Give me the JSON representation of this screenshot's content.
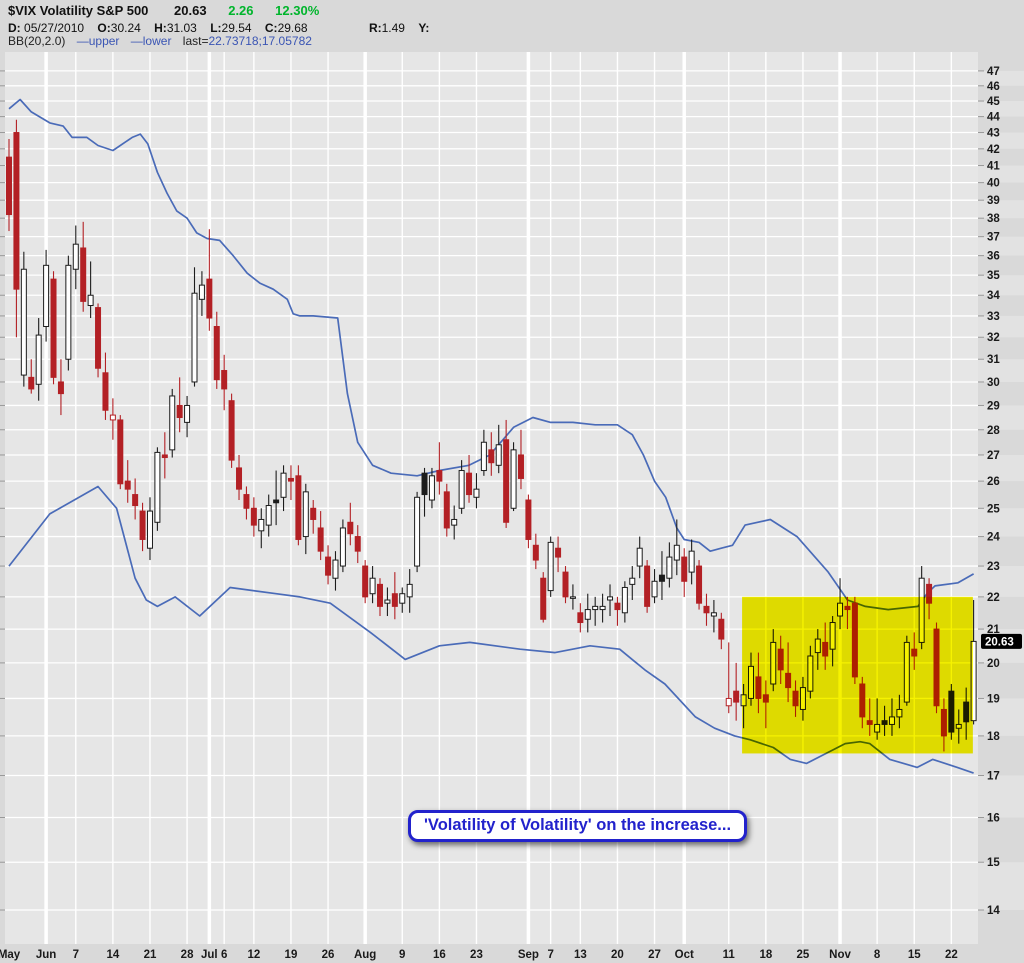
{
  "header": {
    "symbol": "$VIX Volatility S&P 500",
    "last_price": "20.63",
    "change": "2.26",
    "change_pct": "12.30%",
    "d_label": "D:",
    "date": "05/27/2010",
    "o_label": "O:",
    "open": "30.24",
    "h_label": "H:",
    "high": "31.03",
    "l_label": "L:",
    "low": "29.54",
    "c_label": "C:",
    "close": "29.68",
    "r_label": "R:",
    "range": "1.49",
    "y_label": "Y:",
    "bb_label": "BB(20,2.0)",
    "bb_upper": "—upper",
    "bb_lower": "—lower",
    "bb_last_label": "last=",
    "bb_last_value": "22.73718;17.05782"
  },
  "annotation": {
    "text": "'Volatility of Volatility' on the increase..."
  },
  "price_tag": {
    "value": "20.63",
    "price": 20.63
  },
  "colors": {
    "page_bg": "#d9d9d9",
    "plot_bg": "#e6e6e6",
    "grid": "#ffffff",
    "up_candle": "#1c1c1c",
    "down_candle": "#b32025",
    "hollow_fill": "#ffffff",
    "band_line": "#4a6bb8",
    "highlight_yellow": "#f6f200",
    "green_text": "#00b52c",
    "blue_text": "#3a55b4",
    "tag_bg": "#000000",
    "tag_text": "#ffffff",
    "axis_text": "#1a1a1a",
    "tick": "#999999"
  },
  "chart_data": {
    "type": "candlestick",
    "title": "$VIX Volatility S&P 500",
    "scale": "log",
    "grid": true,
    "overlay": "Bollinger Bands (20,2.0)",
    "y_axis": {
      "top_price": 48.3,
      "bottom_price": 13.33,
      "labels": [
        47,
        46,
        45,
        44,
        43,
        42,
        41,
        40,
        39,
        38,
        37,
        36,
        35,
        34,
        33,
        32,
        31,
        30,
        29,
        28,
        27,
        26,
        25,
        24,
        23,
        22,
        21,
        20,
        19,
        18,
        17,
        16,
        15,
        14
      ]
    },
    "x_ticks": [
      {
        "label": "May",
        "i": 0,
        "month": true
      },
      {
        "label": "Jun",
        "i": 5,
        "month": true
      },
      {
        "label": "7",
        "i": 9
      },
      {
        "label": "14",
        "i": 14
      },
      {
        "label": "21",
        "i": 19
      },
      {
        "label": "28",
        "i": 24
      },
      {
        "label": "Jul",
        "i": 27,
        "month": true
      },
      {
        "label": "6",
        "i": 29
      },
      {
        "label": "12",
        "i": 33
      },
      {
        "label": "19",
        "i": 38
      },
      {
        "label": "26",
        "i": 43
      },
      {
        "label": "Aug",
        "i": 48,
        "month": true
      },
      {
        "label": "9",
        "i": 53
      },
      {
        "label": "16",
        "i": 58
      },
      {
        "label": "23",
        "i": 63
      },
      {
        "label": "Sep",
        "i": 70,
        "month": true
      },
      {
        "label": "7",
        "i": 73
      },
      {
        "label": "13",
        "i": 77
      },
      {
        "label": "20",
        "i": 82
      },
      {
        "label": "27",
        "i": 87
      },
      {
        "label": "Oct",
        "i": 91,
        "month": true
      },
      {
        "label": "11",
        "i": 97
      },
      {
        "label": "18",
        "i": 102
      },
      {
        "label": "25",
        "i": 107
      },
      {
        "label": "Nov",
        "i": 112,
        "month": true
      },
      {
        "label": "8",
        "i": 117
      },
      {
        "label": "15",
        "i": 122
      },
      {
        "label": "22",
        "i": 127
      }
    ],
    "ohlc": [
      [
        41.5,
        42.6,
        37.3,
        38.2
      ],
      [
        43.0,
        43.8,
        32.0,
        34.3
      ],
      [
        30.3,
        36.2,
        29.8,
        35.3
      ],
      [
        30.2,
        31.0,
        29.5,
        29.7
      ],
      [
        29.9,
        32.9,
        29.2,
        32.1
      ],
      [
        32.5,
        36.3,
        31.8,
        35.5
      ],
      [
        34.8,
        35.2,
        29.9,
        30.2
      ],
      [
        30.0,
        31.0,
        28.6,
        29.5
      ],
      [
        31.0,
        36.0,
        30.5,
        35.5
      ],
      [
        35.3,
        37.6,
        34.3,
        36.6
      ],
      [
        36.4,
        37.8,
        33.2,
        33.7
      ],
      [
        33.5,
        35.7,
        32.9,
        34.0
      ],
      [
        33.4,
        33.6,
        30.2,
        30.6
      ],
      [
        30.4,
        31.3,
        28.4,
        28.8
      ],
      [
        28.4,
        29.3,
        27.6,
        28.6
      ],
      [
        28.4,
        28.6,
        25.7,
        25.9
      ],
      [
        26.0,
        26.8,
        25.2,
        25.7
      ],
      [
        25.5,
        26.1,
        24.6,
        25.1
      ],
      [
        24.9,
        25.2,
        23.5,
        23.9
      ],
      [
        23.6,
        25.4,
        23.2,
        24.9
      ],
      [
        24.5,
        27.3,
        24.2,
        27.1
      ],
      [
        27.0,
        27.9,
        26.1,
        26.9
      ],
      [
        27.2,
        29.7,
        26.9,
        29.4
      ],
      [
        29.0,
        30.2,
        27.9,
        28.5
      ],
      [
        28.3,
        29.4,
        27.7,
        29.0
      ],
      [
        30.0,
        35.4,
        29.8,
        34.1
      ],
      [
        33.8,
        35.2,
        33.0,
        34.5
      ],
      [
        34.8,
        37.4,
        32.3,
        32.9
      ],
      [
        32.5,
        33.2,
        29.7,
        30.1
      ],
      [
        30.5,
        31.2,
        28.8,
        29.7
      ],
      [
        29.2,
        29.5,
        26.5,
        26.8
      ],
      [
        26.5,
        27.0,
        25.3,
        25.7
      ],
      [
        25.5,
        25.8,
        24.6,
        25.0
      ],
      [
        25.0,
        25.4,
        24.0,
        24.4
      ],
      [
        24.2,
        25.0,
        23.6,
        24.6
      ],
      [
        24.4,
        25.5,
        24.0,
        25.1
      ],
      [
        25.3,
        26.4,
        24.4,
        25.2
      ],
      [
        25.4,
        26.6,
        24.9,
        26.3
      ],
      [
        26.1,
        26.6,
        25.3,
        26.0
      ],
      [
        26.2,
        26.6,
        23.7,
        23.9
      ],
      [
        24.0,
        25.9,
        23.4,
        25.6
      ],
      [
        25.0,
        25.3,
        24.1,
        24.6
      ],
      [
        24.3,
        24.9,
        23.2,
        23.5
      ],
      [
        23.3,
        23.7,
        22.4,
        22.7
      ],
      [
        22.6,
        23.5,
        22.2,
        23.2
      ],
      [
        23.0,
        24.6,
        22.8,
        24.3
      ],
      [
        24.5,
        25.2,
        23.7,
        24.1
      ],
      [
        24.0,
        24.4,
        23.1,
        23.5
      ],
      [
        23.0,
        23.2,
        21.8,
        22.0
      ],
      [
        22.1,
        23.0,
        21.8,
        22.6
      ],
      [
        22.4,
        22.6,
        21.4,
        21.7
      ],
      [
        21.8,
        22.3,
        21.4,
        21.9
      ],
      [
        22.1,
        22.8,
        21.3,
        21.7
      ],
      [
        21.8,
        22.3,
        21.5,
        22.1
      ],
      [
        22.0,
        22.9,
        21.5,
        22.4
      ],
      [
        23.0,
        25.6,
        22.8,
        25.4
      ],
      [
        26.3,
        26.5,
        24.7,
        25.5
      ],
      [
        25.3,
        26.5,
        25.0,
        26.2
      ],
      [
        26.4,
        27.5,
        25.5,
        26.0
      ],
      [
        25.6,
        25.9,
        24.0,
        24.3
      ],
      [
        24.4,
        25.1,
        23.9,
        24.6
      ],
      [
        25.0,
        26.8,
        24.8,
        26.4
      ],
      [
        26.3,
        27.0,
        25.2,
        25.5
      ],
      [
        25.4,
        26.3,
        25.0,
        25.7
      ],
      [
        26.4,
        28.0,
        26.2,
        27.5
      ],
      [
        27.2,
        27.9,
        26.2,
        26.7
      ],
      [
        26.6,
        28.2,
        26.3,
        27.4
      ],
      [
        27.6,
        28.4,
        24.3,
        24.5
      ],
      [
        25.0,
        27.5,
        24.9,
        27.2
      ],
      [
        27.0,
        28.0,
        25.7,
        26.1
      ],
      [
        25.3,
        25.5,
        23.6,
        23.9
      ],
      [
        23.7,
        24.1,
        22.9,
        23.2
      ],
      [
        22.6,
        22.8,
        21.2,
        21.3
      ],
      [
        22.2,
        24.0,
        22.0,
        23.8
      ],
      [
        23.6,
        24.0,
        22.8,
        23.3
      ],
      [
        22.8,
        23.0,
        21.8,
        22.0
      ],
      [
        22.0,
        22.4,
        21.6,
        22.0
      ],
      [
        21.5,
        21.8,
        20.9,
        21.2
      ],
      [
        21.3,
        22.1,
        20.9,
        21.6
      ],
      [
        21.6,
        22.0,
        21.1,
        21.7
      ],
      [
        21.6,
        22.1,
        21.2,
        21.7
      ],
      [
        21.9,
        22.4,
        21.4,
        22.0
      ],
      [
        21.8,
        22.0,
        21.1,
        21.6
      ],
      [
        21.5,
        22.5,
        21.2,
        22.3
      ],
      [
        22.4,
        23.0,
        21.9,
        22.6
      ],
      [
        23.0,
        24.0,
        22.6,
        23.6
      ],
      [
        23.0,
        23.2,
        21.5,
        21.7
      ],
      [
        22.0,
        22.9,
        21.8,
        22.5
      ],
      [
        22.7,
        23.5,
        21.9,
        22.5
      ],
      [
        22.6,
        23.8,
        22.3,
        23.3
      ],
      [
        23.2,
        24.6,
        22.7,
        23.7
      ],
      [
        23.3,
        23.6,
        22.0,
        22.5
      ],
      [
        22.8,
        23.9,
        22.4,
        23.5
      ],
      [
        23.0,
        23.2,
        21.6,
        21.8
      ],
      [
        21.7,
        22.1,
        21.1,
        21.5
      ],
      [
        21.4,
        21.9,
        20.9,
        21.5
      ],
      [
        21.3,
        21.5,
        20.4,
        20.7
      ],
      [
        18.8,
        20.6,
        18.6,
        19.0
      ],
      [
        19.2,
        20.0,
        18.4,
        18.9
      ],
      [
        18.8,
        19.4,
        18.2,
        19.1
      ],
      [
        19.0,
        20.3,
        18.8,
        19.9
      ],
      [
        19.6,
        20.3,
        18.6,
        19.0
      ],
      [
        19.1,
        19.5,
        18.2,
        18.9
      ],
      [
        19.4,
        21.0,
        19.2,
        20.6
      ],
      [
        20.4,
        20.8,
        19.4,
        19.8
      ],
      [
        19.7,
        20.6,
        18.9,
        19.3
      ],
      [
        19.2,
        19.5,
        18.5,
        18.8
      ],
      [
        18.7,
        19.6,
        18.4,
        19.3
      ],
      [
        19.2,
        20.5,
        19.0,
        20.2
      ],
      [
        20.3,
        21.0,
        19.8,
        20.7
      ],
      [
        20.6,
        21.2,
        19.8,
        20.2
      ],
      [
        20.4,
        21.4,
        19.9,
        21.2
      ],
      [
        21.4,
        22.6,
        21.0,
        21.8
      ],
      [
        21.7,
        22.0,
        21.0,
        21.6
      ],
      [
        21.8,
        22.0,
        19.4,
        19.6
      ],
      [
        19.4,
        19.6,
        18.2,
        18.5
      ],
      [
        18.4,
        19.0,
        18.0,
        18.3
      ],
      [
        18.1,
        19.0,
        17.9,
        18.3
      ],
      [
        18.4,
        18.8,
        18.0,
        18.3
      ],
      [
        18.3,
        19.0,
        18.0,
        18.5
      ],
      [
        18.5,
        19.1,
        18.2,
        18.7
      ],
      [
        18.9,
        20.8,
        18.8,
        20.6
      ],
      [
        20.4,
        20.9,
        19.8,
        20.2
      ],
      [
        20.6,
        23.0,
        20.4,
        22.6
      ],
      [
        22.4,
        22.6,
        21.3,
        21.8
      ],
      [
        21.0,
        21.2,
        18.6,
        18.8
      ],
      [
        18.7,
        19.0,
        17.6,
        18.0
      ],
      [
        19.2,
        19.4,
        17.9,
        18.1
      ],
      [
        18.2,
        18.7,
        17.8,
        18.3
      ],
      [
        18.9,
        19.3,
        17.9,
        18.37
      ],
      [
        18.4,
        21.9,
        18.3,
        20.63
      ]
    ],
    "bollinger": {
      "period": 20,
      "stdev": 2.0,
      "last_upper": 22.73718,
      "last_lower": 17.05782,
      "upper_keypoints": [
        [
          0,
          44.5
        ],
        [
          1.5,
          45.1
        ],
        [
          3,
          44.3
        ],
        [
          5.5,
          43.6
        ],
        [
          7.3,
          43.4
        ],
        [
          8.5,
          42.7
        ],
        [
          10.5,
          42.7
        ],
        [
          12,
          42.2
        ],
        [
          14,
          41.9
        ],
        [
          16.6,
          42.7
        ],
        [
          17.7,
          42.9
        ],
        [
          18.7,
          42.3
        ],
        [
          20,
          40.6
        ],
        [
          21.3,
          39.4
        ],
        [
          22.6,
          38.4
        ],
        [
          24,
          38.0
        ],
        [
          25.3,
          37.2
        ],
        [
          26.7,
          36.9
        ],
        [
          28.4,
          36.8
        ],
        [
          30.2,
          36.0
        ],
        [
          32.1,
          35.1
        ],
        [
          33.8,
          34.6
        ],
        [
          35.6,
          34.3
        ],
        [
          37.5,
          33.8
        ],
        [
          38.3,
          33.1
        ],
        [
          39.2,
          33.0
        ],
        [
          41,
          33.0
        ],
        [
          44.3,
          32.9
        ],
        [
          45.6,
          29.5
        ],
        [
          47,
          27.5
        ],
        [
          49,
          26.6
        ],
        [
          51.5,
          26.3
        ],
        [
          55,
          26.2
        ],
        [
          58,
          26.4
        ],
        [
          62,
          26.6
        ],
        [
          64.8,
          27.0
        ],
        [
          68,
          28.1
        ],
        [
          70.6,
          28.5
        ],
        [
          73,
          28.3
        ],
        [
          76,
          28.3
        ],
        [
          79,
          28.2
        ],
        [
          82,
          28.2
        ],
        [
          84,
          27.8
        ],
        [
          85.5,
          27.0
        ],
        [
          87,
          26.0
        ],
        [
          88.5,
          25.4
        ],
        [
          90,
          24.3
        ],
        [
          91,
          23.9
        ],
        [
          93,
          23.8
        ],
        [
          94.5,
          23.5
        ],
        [
          96,
          23.6
        ],
        [
          97.5,
          23.7
        ],
        [
          99.2,
          24.4
        ],
        [
          102.6,
          24.6
        ],
        [
          106.2,
          24.0
        ],
        [
          110.4,
          22.8
        ],
        [
          113,
          21.9
        ],
        [
          115.4,
          21.7
        ],
        [
          118.5,
          21.6
        ],
        [
          122.5,
          21.7
        ],
        [
          123.7,
          22.1
        ],
        [
          124.8,
          22.35
        ],
        [
          127.9,
          22.45
        ],
        [
          130,
          22.74
        ]
      ],
      "lower_keypoints": [
        [
          0,
          23.0
        ],
        [
          5.5,
          24.8
        ],
        [
          12,
          25.8
        ],
        [
          14.5,
          25.0
        ],
        [
          17,
          22.6
        ],
        [
          18.5,
          21.9
        ],
        [
          20,
          21.7
        ],
        [
          22.4,
          22.0
        ],
        [
          25.7,
          21.4
        ],
        [
          29.8,
          22.3
        ],
        [
          36,
          22.1
        ],
        [
          39.2,
          22.0
        ],
        [
          43.3,
          21.8
        ],
        [
          48.7,
          20.9
        ],
        [
          53.4,
          20.1
        ],
        [
          58,
          20.5
        ],
        [
          62.1,
          20.6
        ],
        [
          68.9,
          20.4
        ],
        [
          73.6,
          20.3
        ],
        [
          78.3,
          20.5
        ],
        [
          82.3,
          20.4
        ],
        [
          85.7,
          19.8
        ],
        [
          88.4,
          19.4
        ],
        [
          92.5,
          18.5
        ],
        [
          95.1,
          18.2
        ],
        [
          97.8,
          18.0
        ],
        [
          99.9,
          17.9
        ],
        [
          103,
          17.7
        ],
        [
          105.3,
          17.4
        ],
        [
          107.5,
          17.3
        ],
        [
          112.7,
          17.8
        ],
        [
          114.7,
          17.85
        ],
        [
          116,
          17.8
        ],
        [
          118.7,
          17.4
        ],
        [
          122.4,
          17.2
        ],
        [
          124.5,
          17.4
        ],
        [
          127.8,
          17.2
        ],
        [
          130,
          17.06
        ]
      ]
    },
    "highlight_box": {
      "from_index": 98.8,
      "to_index": 129.9,
      "top_price": 22.0,
      "bottom_price": 17.55
    }
  }
}
